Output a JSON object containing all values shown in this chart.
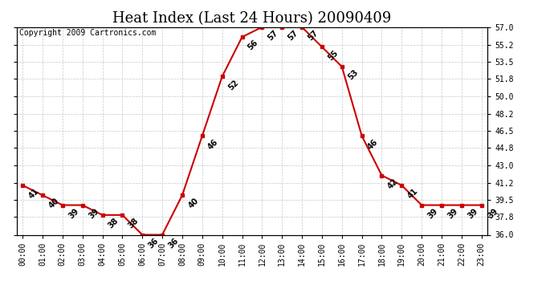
{
  "title": "Heat Index (Last 24 Hours) 20090409",
  "copyright": "Copyright 2009 Cartronics.com",
  "hours": [
    0,
    1,
    2,
    3,
    4,
    5,
    6,
    7,
    8,
    9,
    10,
    11,
    12,
    13,
    14,
    15,
    16,
    17,
    18,
    19,
    20,
    21,
    22,
    23
  ],
  "values": [
    41,
    40,
    39,
    39,
    38,
    38,
    36,
    36,
    40,
    46,
    52,
    56,
    57,
    57,
    57,
    55,
    53,
    46,
    42,
    41,
    39,
    39,
    39,
    39
  ],
  "ylim": [
    36.0,
    57.0
  ],
  "yticks": [
    36.0,
    37.8,
    39.5,
    41.2,
    43.0,
    44.8,
    46.5,
    48.2,
    50.0,
    51.8,
    53.5,
    55.2,
    57.0
  ],
  "line_color": "#cc0000",
  "marker_color": "#cc0000",
  "bg_color": "#ffffff",
  "grid_color": "#c8c8c8",
  "title_fontsize": 13,
  "annot_fontsize": 7,
  "tick_fontsize": 7,
  "copyright_fontsize": 7
}
